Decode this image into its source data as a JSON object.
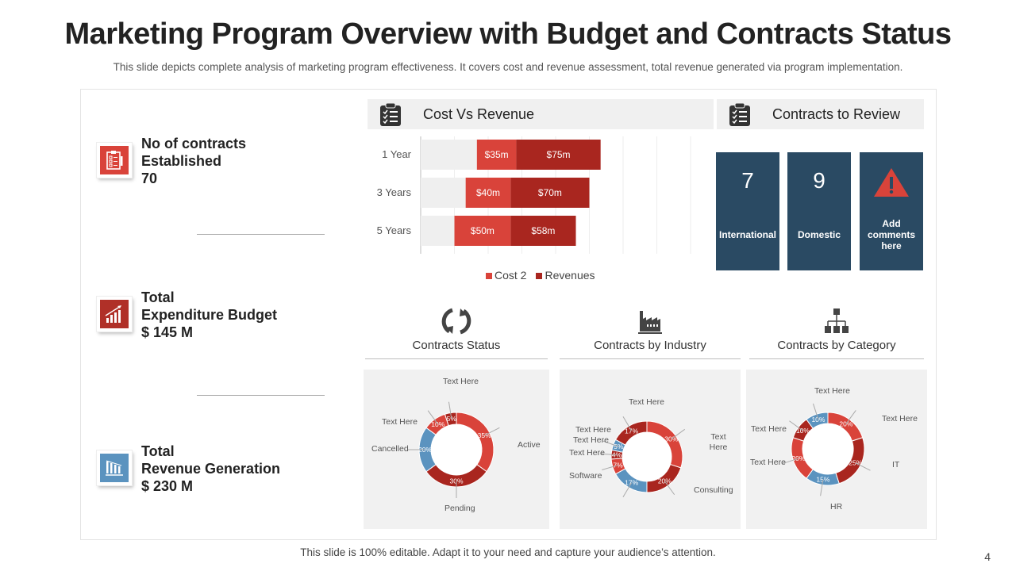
{
  "header": {
    "title": "Marketing Program Overview with Budget and Contracts Status",
    "subtitle": "This slide depicts complete analysis of marketing program effectiveness. It covers cost and revenue assessment, total revenue generated via program implementation."
  },
  "kpis": [
    {
      "icon": "checklist-icon",
      "line1": "No of contracts",
      "line2": "Established",
      "value": "70",
      "color": "#d9433a"
    },
    {
      "icon": "growth-chart-icon",
      "line1": "Total",
      "line2": "Expenditure Budget",
      "value": "$ 145 M",
      "color": "#b03028"
    },
    {
      "icon": "bar-chart-declining-icon",
      "line1": "Total",
      "line2": "Revenue Generation",
      "value": "$ 230 M",
      "color": "#5b93bf"
    }
  ],
  "cost_vs_revenue": {
    "title": "Cost Vs Revenue",
    "icon": "clipboard-checklist-icon"
  },
  "contracts_to_review": {
    "title": "Contracts to Review",
    "icon": "clipboard-checklist-icon",
    "tiles": [
      {
        "value": "7",
        "label": "International"
      },
      {
        "value": "9",
        "label": "Domestic"
      },
      {
        "icon": "warning-icon",
        "label_lines": [
          "Add",
          "comments",
          "here"
        ]
      }
    ]
  },
  "sections": [
    {
      "title": "Contracts Status",
      "icon": "refresh-cycle-icon"
    },
    {
      "title": "Contracts by Industry",
      "icon": "factory-icon"
    },
    {
      "title": "Contracts by Category",
      "icon": "org-hierarchy-icon"
    }
  ],
  "colors": {
    "red": "#d9433a",
    "dark_red": "#a9261f",
    "blue": "#5b93bf",
    "navy": "#2a4a63",
    "base_gray": "#efefef"
  },
  "chart_data": [
    {
      "type": "bar",
      "orientation": "horizontal-stacked",
      "title": "Cost Vs Revenue",
      "categories": [
        "1 Year",
        "3 Years",
        "5 Years"
      ],
      "series": [
        {
          "name": "Base",
          "values": [
            50,
            40,
            30
          ],
          "legend": false
        },
        {
          "name": "Cost 2",
          "values": [
            35,
            40,
            50
          ],
          "labels": [
            "$35m",
            "$40m",
            "$50m"
          ]
        },
        {
          "name": "Revenues",
          "values": [
            75,
            70,
            58
          ],
          "labels": [
            "$75m",
            "$70m",
            "$58m"
          ]
        }
      ],
      "legend": [
        "Cost 2",
        "Revenues"
      ],
      "legend_position": "bottom",
      "xlim": [
        0,
        240
      ],
      "grid": true
    },
    {
      "type": "pie",
      "style": "donut",
      "title": "Contracts Status",
      "slices": [
        {
          "label": "Active",
          "value": 35,
          "display": "35%",
          "color": "red"
        },
        {
          "label": "Pending",
          "value": 30,
          "display": "30%",
          "color": "dark_red"
        },
        {
          "label": "Cancelled",
          "value": 20,
          "display": "20%",
          "color": "blue"
        },
        {
          "label": "Text Here",
          "value": 10,
          "display": "10%",
          "color": "red"
        },
        {
          "label": "Text Here",
          "value": 5,
          "display": "5%",
          "color": "dark_red"
        }
      ]
    },
    {
      "type": "pie",
      "style": "donut",
      "title": "Contracts by Industry",
      "slices": [
        {
          "label": "Text Here",
          "value": 30,
          "display": "30%",
          "color": "red"
        },
        {
          "label": "Consulting",
          "value": 20,
          "display": "20%",
          "color": "dark_red"
        },
        {
          "label": "",
          "value": 17,
          "display": "17%",
          "color": "blue"
        },
        {
          "label": "Software",
          "value": 7,
          "display": "7%",
          "color": "red"
        },
        {
          "label": "Text Here",
          "value": 4,
          "display": "4%",
          "color": "dark_red"
        },
        {
          "label": "Text Here",
          "value": 5,
          "display": "5%",
          "color": "blue"
        },
        {
          "label": "Text Here",
          "value": 17,
          "display": "17%",
          "color": "dark_red"
        }
      ],
      "top_label": "Text Here"
    },
    {
      "type": "pie",
      "style": "donut",
      "title": "Contracts by Category",
      "slices": [
        {
          "label": "Text Here",
          "value": 20,
          "display": "20%",
          "color": "red"
        },
        {
          "label": "IT",
          "value": 25,
          "display": "25%",
          "color": "dark_red"
        },
        {
          "label": "HR",
          "value": 15,
          "display": "15%",
          "color": "blue"
        },
        {
          "label": "Text Here",
          "value": 20,
          "display": "20%",
          "color": "red"
        },
        {
          "label": "Text Here",
          "value": 10,
          "display": "10%",
          "color": "dark_red"
        },
        {
          "label": "Text Here",
          "value": 10,
          "display": "10%",
          "color": "blue"
        }
      ]
    }
  ],
  "footer": {
    "note": "This slide is 100% editable. Adapt it to your need and capture your audience’s attention.",
    "page_number": "4"
  }
}
